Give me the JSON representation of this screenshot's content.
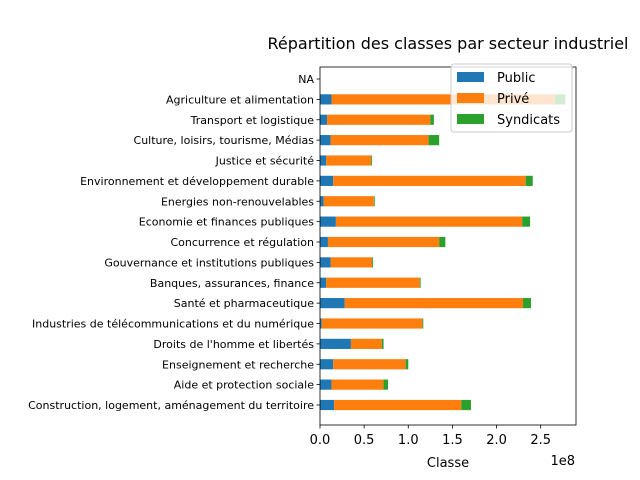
{
  "chart_data": {
    "type": "bar",
    "orientation": "horizontal",
    "stacked": true,
    "title": "Répartition des classes par secteur industriel",
    "xlabel": "Classe",
    "ylabel": "",
    "x_scale_label": "1e8",
    "xlim": [
      0,
      290000000
    ],
    "xticks": [
      0,
      50000000,
      100000000,
      150000000,
      200000000,
      250000000
    ],
    "xtick_labels": [
      "0.0",
      "0.5",
      "1.0",
      "1.5",
      "2.0",
      "2.5"
    ],
    "grid": false,
    "legend_position": "top-right",
    "categories": [
      "Construction, logement, aménagement du territoire",
      "Aide et protection sociale",
      "Enseignement et recherche",
      "Droits de l'homme et libertés",
      "Industries de télécommunications et du numérique",
      "Santé et pharmaceutique",
      "Banques, assurances, finance",
      "Gouvernance et institutions publiques",
      "Concurrence et régulation",
      "Economie et finances publiques",
      "Energies non-renouvelables",
      "Environnement et développement durable",
      "Justice et sécurité",
      "Culture, loisirs, tourisme, Médias",
      "Transport et logistique",
      "Agriculture et alimentation",
      "NA"
    ],
    "series": [
      {
        "name": "Public",
        "color": "#1f77b4",
        "values": [
          16000000,
          13000000,
          15000000,
          35000000,
          2000000,
          28000000,
          7000000,
          12000000,
          9000000,
          18000000,
          4000000,
          15000000,
          7000000,
          12000000,
          8000000,
          13000000,
          0
        ]
      },
      {
        "name": "Privé",
        "color": "#ff7f0e",
        "values": [
          144000000,
          59000000,
          82000000,
          35000000,
          114000000,
          202000000,
          106000000,
          47000000,
          126000000,
          211000000,
          57000000,
          218000000,
          51000000,
          111000000,
          117000000,
          253000000,
          0
        ]
      },
      {
        "name": "Syndicats",
        "color": "#2ca02c",
        "values": [
          11000000,
          5000000,
          3000000,
          2000000,
          1000000,
          9000000,
          1000000,
          1000000,
          7000000,
          9000000,
          1000000,
          8000000,
          1000000,
          12000000,
          4000000,
          12000000,
          0
        ]
      }
    ]
  }
}
